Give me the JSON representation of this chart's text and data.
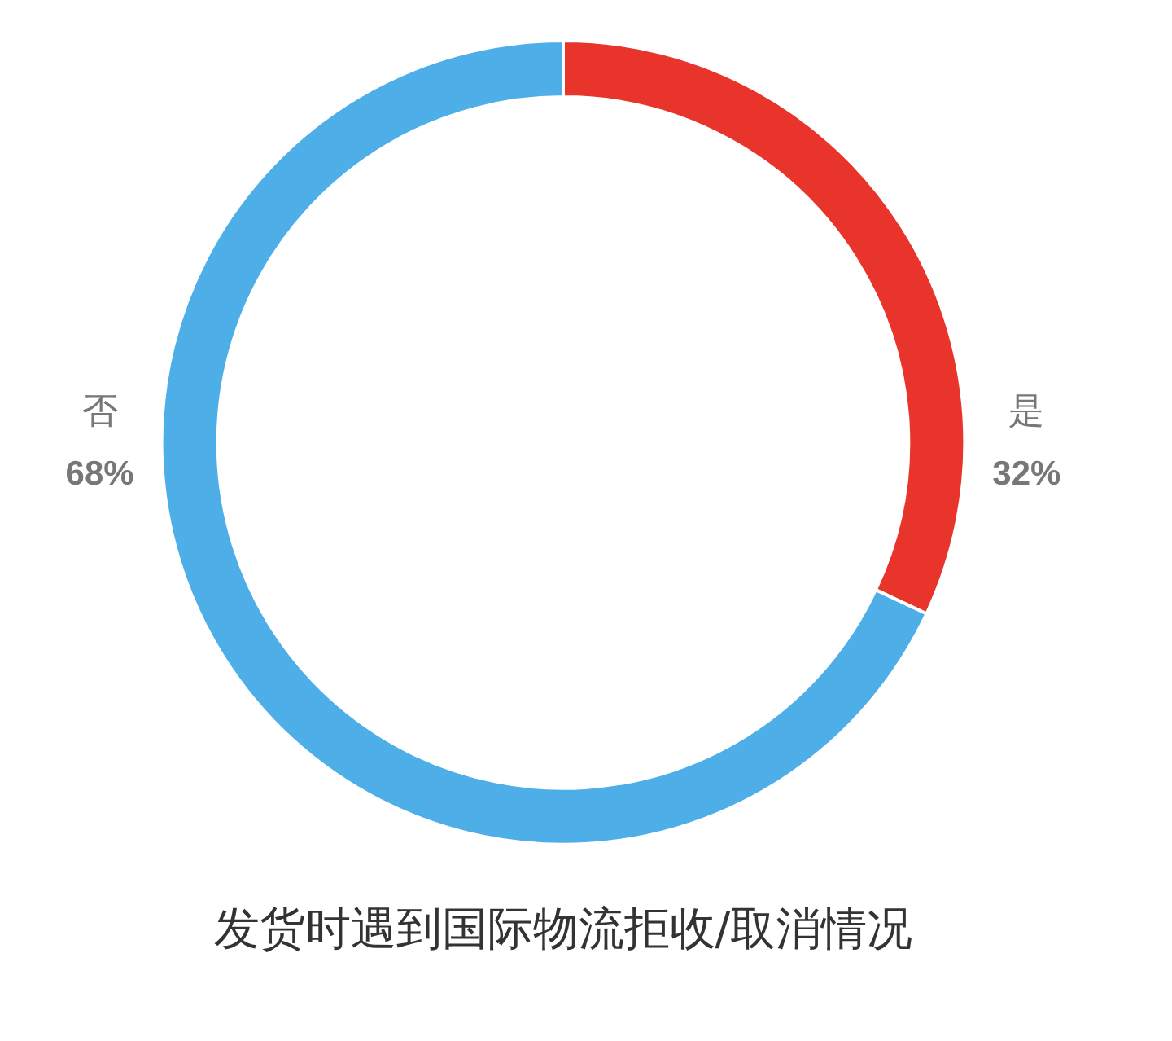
{
  "chart_data": {
    "type": "donut",
    "title": "发货时遇到国际物流拒收/取消情况",
    "categories": [
      "是",
      "否"
    ],
    "values": [
      32,
      68
    ],
    "value_labels": [
      "32%",
      "68%"
    ],
    "colors": [
      "#e8342a",
      "#4daee8"
    ],
    "legend": false
  }
}
